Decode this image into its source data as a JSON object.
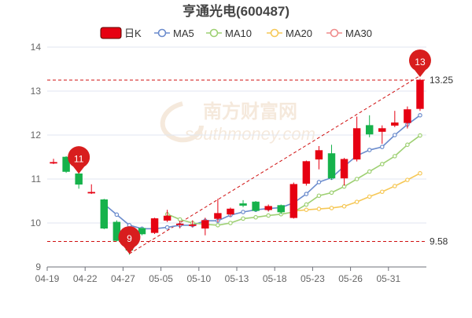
{
  "chart_data": {
    "type": "candlestick",
    "title": "亨通光电(600487)",
    "legend": {
      "position": "top-center",
      "items": [
        {
          "label": "日K",
          "color": "#e60012",
          "kind": "kline"
        },
        {
          "label": "MA5",
          "color": "#6b8ccd",
          "kind": "line"
        },
        {
          "label": "MA10",
          "color": "#9ed073",
          "kind": "line"
        },
        {
          "label": "MA20",
          "color": "#f6c857",
          "kind": "line"
        },
        {
          "label": "MA30",
          "color": "#ef8b8b",
          "kind": "line"
        }
      ]
    },
    "ylim": [
      9,
      14
    ],
    "yticks": [
      "9",
      "10",
      "11",
      "12",
      "13",
      "14"
    ],
    "x_tick_labels": [
      {
        "i": 0,
        "label": "04-19"
      },
      {
        "i": 3,
        "label": "04-22"
      },
      {
        "i": 6,
        "label": "04-27"
      },
      {
        "i": 9,
        "label": "05-05"
      },
      {
        "i": 12,
        "label": "05-10"
      },
      {
        "i": 15,
        "label": "05-13"
      },
      {
        "i": 18,
        "label": "05-18"
      },
      {
        "i": 21,
        "label": "05-23"
      },
      {
        "i": 24,
        "label": "05-26"
      },
      {
        "i": 27,
        "label": "05-31"
      }
    ],
    "n_slots": 30,
    "candles": [
      {
        "i": 0,
        "o": 11.38,
        "c": 11.38,
        "h": 11.46,
        "l": 11.34
      },
      {
        "i": 1,
        "o": 11.5,
        "c": 11.17,
        "h": 11.52,
        "l": 11.14
      },
      {
        "i": 2,
        "o": 11.12,
        "c": 10.88,
        "h": 11.15,
        "l": 10.78
      },
      {
        "i": 3,
        "o": 10.7,
        "c": 10.7,
        "h": 10.88,
        "l": 10.66
      },
      {
        "i": 4,
        "o": 10.53,
        "c": 9.88,
        "h": 10.55,
        "l": 9.86
      },
      {
        "i": 5,
        "o": 10.02,
        "c": 9.6,
        "h": 10.06,
        "l": 9.58
      },
      {
        "i": 6,
        "o": 9.6,
        "c": 9.38,
        "h": 9.88,
        "l": 9.28
      },
      {
        "i": 7,
        "o": 9.88,
        "c": 9.75,
        "h": 9.9,
        "l": 9.72
      },
      {
        "i": 8,
        "o": 9.78,
        "c": 10.1,
        "h": 10.12,
        "l": 9.75
      },
      {
        "i": 9,
        "o": 10.06,
        "c": 10.16,
        "h": 10.3,
        "l": 10.02
      },
      {
        "i": 10,
        "o": 9.97,
        "c": 9.98,
        "h": 10.05,
        "l": 9.88
      },
      {
        "i": 11,
        "o": 9.96,
        "c": 9.96,
        "h": 10.06,
        "l": 9.9
      },
      {
        "i": 12,
        "o": 9.88,
        "c": 10.06,
        "h": 10.12,
        "l": 9.72
      },
      {
        "i": 13,
        "o": 10.1,
        "c": 10.22,
        "h": 10.55,
        "l": 10.02
      },
      {
        "i": 14,
        "o": 10.2,
        "c": 10.32,
        "h": 10.35,
        "l": 10.15
      },
      {
        "i": 15,
        "o": 10.44,
        "c": 10.4,
        "h": 10.52,
        "l": 10.36
      },
      {
        "i": 16,
        "o": 10.48,
        "c": 10.28,
        "h": 10.5,
        "l": 10.26
      },
      {
        "i": 17,
        "o": 10.3,
        "c": 10.38,
        "h": 10.42,
        "l": 10.26
      },
      {
        "i": 18,
        "o": 10.4,
        "c": 10.25,
        "h": 10.42,
        "l": 10.2
      },
      {
        "i": 19,
        "o": 10.12,
        "c": 10.88,
        "h": 10.92,
        "l": 10.1
      },
      {
        "i": 20,
        "o": 10.9,
        "c": 11.4,
        "h": 11.42,
        "l": 10.85
      },
      {
        "i": 21,
        "o": 11.45,
        "c": 11.65,
        "h": 11.75,
        "l": 11.22
      },
      {
        "i": 22,
        "o": 11.58,
        "c": 11.02,
        "h": 11.78,
        "l": 10.98
      },
      {
        "i": 23,
        "o": 11.02,
        "c": 11.45,
        "h": 11.48,
        "l": 10.85
      },
      {
        "i": 24,
        "o": 11.45,
        "c": 12.15,
        "h": 12.42,
        "l": 11.4
      },
      {
        "i": 25,
        "o": 12.22,
        "c": 12.02,
        "h": 12.45,
        "l": 11.95
      },
      {
        "i": 26,
        "o": 12.08,
        "c": 12.15,
        "h": 12.22,
        "l": 11.8
      },
      {
        "i": 27,
        "o": 12.22,
        "c": 12.28,
        "h": 12.55,
        "l": 12.18
      },
      {
        "i": 28,
        "o": 12.28,
        "c": 12.58,
        "h": 12.65,
        "l": 12.15
      },
      {
        "i": 29,
        "o": 12.6,
        "c": 13.25,
        "h": 13.28,
        "l": 12.55
      }
    ],
    "ma5": [
      null,
      null,
      null,
      null,
      10.43,
      10.19,
      9.95,
      9.87,
      9.87,
      9.9,
      9.95,
      9.95,
      10.05,
      10.05,
      10.18,
      10.25,
      10.3,
      10.33,
      10.35,
      10.46,
      10.66,
      10.93,
      11.03,
      11.29,
      11.53,
      11.66,
      11.73,
      12.0,
      12.24,
      12.45
    ],
    "ma10": [
      null,
      null,
      null,
      null,
      null,
      null,
      null,
      null,
      null,
      10.2,
      10.08,
      10.0,
      9.97,
      9.95,
      10.0,
      10.1,
      10.13,
      10.17,
      10.2,
      10.25,
      10.42,
      10.62,
      10.69,
      10.83,
      11.0,
      11.17,
      11.34,
      11.52,
      11.78,
      11.99
    ],
    "ma20": [
      null,
      null,
      null,
      null,
      null,
      null,
      null,
      null,
      null,
      null,
      null,
      null,
      null,
      null,
      null,
      null,
      null,
      null,
      null,
      10.27,
      10.3,
      10.32,
      10.34,
      10.38,
      10.48,
      10.6,
      10.71,
      10.84,
      10.98,
      11.13
    ],
    "ma30": [],
    "reference_lines": [
      {
        "value": 13.25,
        "label": "13.25",
        "color": "#d01010"
      },
      {
        "value": 9.58,
        "label": "9.58",
        "color": "#d01010"
      }
    ],
    "trend_line": {
      "from_slot": 6,
      "from_value": 9.3,
      "to_slot": 29,
      "to_value": 13.35,
      "color": "#d01010"
    },
    "markers": [
      {
        "i": 2,
        "value": 11.12,
        "label": "11"
      },
      {
        "i": 6,
        "value": 9.3,
        "label": "9"
      },
      {
        "i": 29,
        "value": 13.32,
        "label": "13"
      }
    ],
    "watermark": "南方财富网",
    "watermark_sub": "southmoney.com",
    "colors": {
      "up": "#e60012",
      "down": "#16b24b",
      "grid": "#e0e6f1",
      "axis": "#999999"
    }
  }
}
